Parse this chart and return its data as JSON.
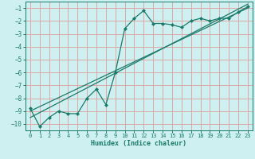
{
  "xlabel": "Humidex (Indice chaleur)",
  "bg_color": "#cff0f0",
  "grid_color": "#dea8a8",
  "line_color": "#1a7a6a",
  "xlim": [
    -0.5,
    23.5
  ],
  "ylim": [
    -10.5,
    -0.5
  ],
  "yticks": [
    -10,
    -9,
    -8,
    -7,
    -6,
    -5,
    -4,
    -3,
    -2,
    -1
  ],
  "xticks": [
    0,
    1,
    2,
    3,
    4,
    5,
    6,
    7,
    8,
    9,
    10,
    11,
    12,
    13,
    14,
    15,
    16,
    17,
    18,
    19,
    20,
    21,
    22,
    23
  ],
  "main_x": [
    0,
    1,
    2,
    3,
    4,
    5,
    6,
    7,
    8,
    9,
    10,
    11,
    12,
    13,
    14,
    15,
    16,
    17,
    18,
    19,
    20,
    21,
    22,
    23
  ],
  "main_y": [
    -8.8,
    -10.2,
    -9.5,
    -9.0,
    -9.2,
    -9.2,
    -8.0,
    -7.3,
    -8.5,
    -6.0,
    -2.6,
    -1.8,
    -1.2,
    -2.2,
    -2.2,
    -2.3,
    -2.5,
    -2.0,
    -1.8,
    -2.0,
    -1.8,
    -1.8,
    -1.3,
    -0.9
  ],
  "line1_x": [
    0,
    23
  ],
  "line1_y": [
    -9.0,
    -1.0
  ],
  "line2_x": [
    0,
    23
  ],
  "line2_y": [
    -9.5,
    -0.7
  ]
}
